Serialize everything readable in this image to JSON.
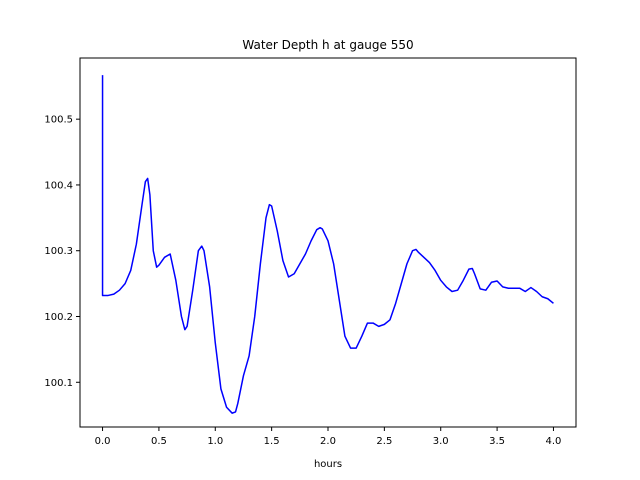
{
  "chart_data": {
    "type": "line",
    "title": "Water Depth h at gauge 550",
    "xlabel": "hours",
    "ylabel": "",
    "xlim": [
      -0.2,
      4.2
    ],
    "ylim": [
      100.032,
      100.593
    ],
    "xticks": [
      "0.0",
      "0.5",
      "1.0",
      "1.5",
      "2.0",
      "2.5",
      "3.0",
      "3.5",
      "4.0"
    ],
    "yticks": [
      "100.1",
      "100.2",
      "100.3",
      "100.4",
      "100.5"
    ],
    "grid": false,
    "line_color": "#0000ff",
    "series": [
      {
        "x": [
          0.0,
          0.0,
          0.0,
          0.05,
          0.1,
          0.15,
          0.2,
          0.25,
          0.3,
          0.35,
          0.38,
          0.4,
          0.42,
          0.45,
          0.48,
          0.5,
          0.55,
          0.6,
          0.65,
          0.7,
          0.73,
          0.75,
          0.8,
          0.85,
          0.88,
          0.9,
          0.95,
          1.0,
          1.05,
          1.1,
          1.15,
          1.18,
          1.2,
          1.25,
          1.3,
          1.35,
          1.4,
          1.45,
          1.48,
          1.5,
          1.55,
          1.6,
          1.65,
          1.7,
          1.75,
          1.8,
          1.85,
          1.9,
          1.93,
          1.95,
          2.0,
          2.05,
          2.1,
          2.15,
          2.2,
          2.25,
          2.3,
          2.35,
          2.4,
          2.45,
          2.5,
          2.55,
          2.6,
          2.65,
          2.7,
          2.75,
          2.78,
          2.8,
          2.85,
          2.9,
          2.95,
          3.0,
          3.05,
          3.1,
          3.15,
          3.2,
          3.25,
          3.28,
          3.3,
          3.35,
          3.4,
          3.45,
          3.5,
          3.55,
          3.6,
          3.65,
          3.7,
          3.75,
          3.8,
          3.85,
          3.9,
          3.95,
          4.0
        ],
        "values": [
          100.567,
          100.567,
          100.232,
          100.232,
          100.234,
          100.24,
          100.25,
          100.27,
          100.31,
          100.37,
          100.405,
          100.41,
          100.385,
          100.3,
          100.275,
          100.278,
          100.29,
          100.295,
          100.255,
          100.2,
          100.18,
          100.185,
          100.24,
          100.3,
          100.307,
          100.3,
          100.245,
          100.16,
          100.09,
          100.062,
          100.053,
          100.055,
          100.068,
          100.11,
          100.14,
          100.2,
          100.28,
          100.35,
          100.37,
          100.368,
          100.33,
          100.285,
          100.26,
          100.265,
          100.28,
          100.295,
          100.315,
          100.332,
          100.335,
          100.333,
          100.315,
          100.28,
          100.225,
          100.17,
          100.152,
          100.152,
          100.17,
          100.19,
          100.19,
          100.185,
          100.188,
          100.195,
          100.22,
          100.25,
          100.28,
          100.3,
          100.302,
          100.298,
          100.29,
          100.282,
          100.27,
          100.255,
          100.245,
          100.238,
          100.24,
          100.255,
          100.272,
          100.273,
          100.265,
          100.242,
          100.24,
          100.252,
          100.254,
          100.245,
          100.243,
          100.243,
          100.243,
          100.238,
          100.244,
          100.238,
          100.23,
          100.227,
          100.22
        ]
      }
    ]
  }
}
